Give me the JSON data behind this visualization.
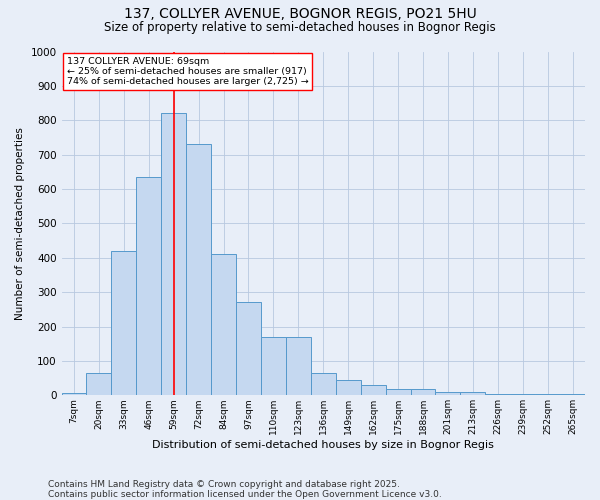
{
  "title": "137, COLLYER AVENUE, BOGNOR REGIS, PO21 5HU",
  "subtitle": "Size of property relative to semi-detached houses in Bognor Regis",
  "xlabel": "Distribution of semi-detached houses by size in Bognor Regis",
  "ylabel": "Number of semi-detached properties",
  "categories": [
    "7sqm",
    "20sqm",
    "33sqm",
    "46sqm",
    "59sqm",
    "72sqm",
    "84sqm",
    "97sqm",
    "110sqm",
    "123sqm",
    "136sqm",
    "149sqm",
    "162sqm",
    "175sqm",
    "188sqm",
    "201sqm",
    "213sqm",
    "226sqm",
    "239sqm",
    "252sqm",
    "265sqm"
  ],
  "values": [
    7,
    65,
    420,
    635,
    820,
    730,
    410,
    270,
    170,
    170,
    65,
    45,
    30,
    18,
    18,
    10,
    10,
    3,
    3,
    3,
    3
  ],
  "bar_color": "#c5d8f0",
  "bar_edge_color": "#5599cc",
  "vline_index": 4.5,
  "vline_color": "red",
  "annotation_text": "137 COLLYER AVENUE: 69sqm\n← 25% of semi-detached houses are smaller (917)\n74% of semi-detached houses are larger (2,725) →",
  "annotation_box_color": "white",
  "annotation_box_edge": "red",
  "ylim": [
    0,
    1000
  ],
  "yticks": [
    0,
    100,
    200,
    300,
    400,
    500,
    600,
    700,
    800,
    900,
    1000
  ],
  "footer": "Contains HM Land Registry data © Crown copyright and database right 2025.\nContains public sector information licensed under the Open Government Licence v3.0.",
  "bg_color": "#e8eef8",
  "plot_bg_color": "#e8eef8",
  "grid_color": "#b8c8e0",
  "title_fontsize": 10,
  "subtitle_fontsize": 8.5,
  "footer_fontsize": 6.5
}
